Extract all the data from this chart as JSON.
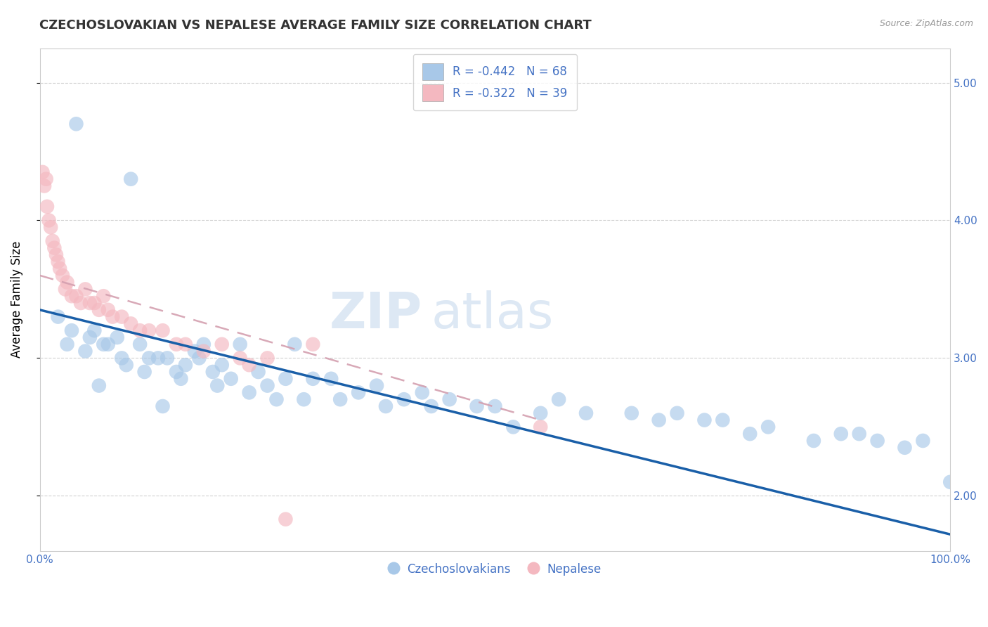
{
  "title": "CZECHOSLOVAKIAN VS NEPALESE AVERAGE FAMILY SIZE CORRELATION CHART",
  "source_text": "Source: ZipAtlas.com",
  "ylabel": "Average Family Size",
  "xlim": [
    0,
    100
  ],
  "ylim": [
    1.6,
    5.25
  ],
  "yticks": [
    2.0,
    3.0,
    4.0,
    5.0
  ],
  "legend_r1": "R = -0.442   N = 68",
  "legend_r2": "R = -0.322   N = 39",
  "legend_label1": "Czechoslovakians",
  "legend_label2": "Nepalese",
  "color_czech": "#a8c8e8",
  "color_nepal": "#f4b8c0",
  "color_trendline_czech": "#1a5fa8",
  "color_trendline_nepal": "#d4a0b0",
  "background_color": "#ffffff",
  "grid_color": "#cccccc",
  "czech_x": [
    4.0,
    10.0,
    2.0,
    6.0,
    8.5,
    3.0,
    5.0,
    7.0,
    9.0,
    11.0,
    12.0,
    14.0,
    15.0,
    16.0,
    17.0,
    18.0,
    3.5,
    5.5,
    7.5,
    9.5,
    11.5,
    13.0,
    15.5,
    17.5,
    19.0,
    20.0,
    21.0,
    22.0,
    24.0,
    25.0,
    27.0,
    28.0,
    30.0,
    32.0,
    35.0,
    37.0,
    40.0,
    42.0,
    45.0,
    48.0,
    50.0,
    55.0,
    57.0,
    60.0,
    65.0,
    68.0,
    70.0,
    75.0,
    78.0,
    80.0,
    85.0,
    88.0,
    90.0,
    92.0,
    95.0,
    97.0,
    100.0,
    6.5,
    13.5,
    19.5,
    23.0,
    26.0,
    29.0,
    33.0,
    38.0,
    43.0,
    52.0,
    73.0
  ],
  "czech_y": [
    4.7,
    4.3,
    3.3,
    3.2,
    3.15,
    3.1,
    3.05,
    3.1,
    3.0,
    3.1,
    3.0,
    3.0,
    2.9,
    2.95,
    3.05,
    3.1,
    3.2,
    3.15,
    3.1,
    2.95,
    2.9,
    3.0,
    2.85,
    3.0,
    2.9,
    2.95,
    2.85,
    3.1,
    2.9,
    2.8,
    2.85,
    3.1,
    2.85,
    2.85,
    2.75,
    2.8,
    2.7,
    2.75,
    2.7,
    2.65,
    2.65,
    2.6,
    2.7,
    2.6,
    2.6,
    2.55,
    2.6,
    2.55,
    2.45,
    2.5,
    2.4,
    2.45,
    2.45,
    2.4,
    2.35,
    2.4,
    2.1,
    2.8,
    2.65,
    2.8,
    2.75,
    2.7,
    2.7,
    2.7,
    2.65,
    2.65,
    2.5,
    2.55
  ],
  "nepal_x": [
    0.3,
    0.5,
    0.7,
    0.8,
    1.0,
    1.2,
    1.4,
    1.6,
    1.8,
    2.0,
    2.2,
    2.5,
    2.8,
    3.0,
    3.5,
    4.0,
    4.5,
    5.0,
    5.5,
    6.0,
    6.5,
    7.0,
    7.5,
    8.0,
    9.0,
    10.0,
    11.0,
    12.0,
    13.5,
    15.0,
    16.0,
    18.0,
    20.0,
    22.0,
    23.0,
    25.0,
    27.0,
    30.0,
    55.0
  ],
  "nepal_y": [
    4.35,
    4.25,
    4.3,
    4.1,
    4.0,
    3.95,
    3.85,
    3.8,
    3.75,
    3.7,
    3.65,
    3.6,
    3.5,
    3.55,
    3.45,
    3.45,
    3.4,
    3.5,
    3.4,
    3.4,
    3.35,
    3.45,
    3.35,
    3.3,
    3.3,
    3.25,
    3.2,
    3.2,
    3.2,
    3.1,
    3.1,
    3.05,
    3.1,
    3.0,
    2.95,
    3.0,
    1.83,
    3.1,
    2.5
  ],
  "czech_trend_x0": 0,
  "czech_trend_x1": 100,
  "czech_trend_y0": 3.35,
  "czech_trend_y1": 1.72,
  "nepal_trend_x0": 0,
  "nepal_trend_x1": 55,
  "nepal_trend_y0": 3.6,
  "nepal_trend_y1": 2.55,
  "title_fontsize": 13,
  "axis_label_fontsize": 12,
  "tick_fontsize": 11,
  "legend_fontsize": 12
}
